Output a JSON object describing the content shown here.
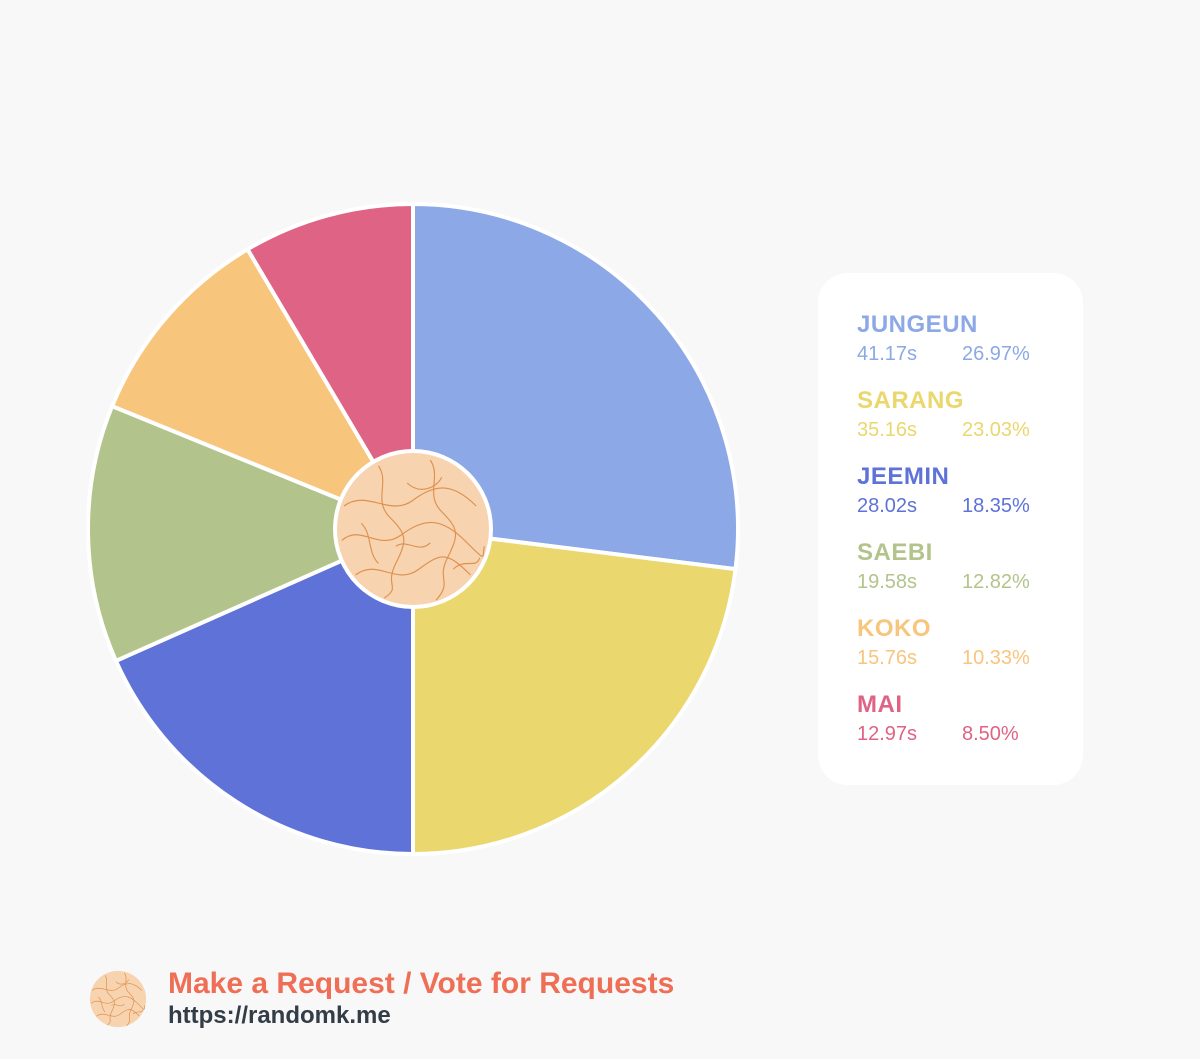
{
  "chart_data": {
    "type": "pie",
    "slices": [
      {
        "label": "JUNGEUN",
        "time": "41.17s",
        "percent": "26.97%",
        "value": 26.97,
        "color": "#8ca8e6"
      },
      {
        "label": "SARANG",
        "time": "35.16s",
        "percent": "23.03%",
        "value": 23.03,
        "color": "#ead76d"
      },
      {
        "label": "JEEMIN",
        "time": "28.02s",
        "percent": "18.35%",
        "value": 18.35,
        "color": "#5e72d8"
      },
      {
        "label": "SAEBI",
        "time": "19.58s",
        "percent": "12.82%",
        "value": 12.82,
        "color": "#b2c48b"
      },
      {
        "label": "KOKO",
        "time": "15.76s",
        "percent": "10.33%",
        "value": 10.33,
        "color": "#f8c57d"
      },
      {
        "label": "MAI",
        "time": "12.97s",
        "percent": "8.50%",
        "value": 8.5,
        "color": "#df6384"
      }
    ],
    "start_angle": "12 o'clock",
    "direction": "clockwise",
    "center_badge": "orange-circle-with-contour-lines"
  },
  "legend": {
    "placement": "right"
  },
  "footer": {
    "title": "Make a Request / Vote for Requests",
    "url": "https://randomk.me",
    "icon": "orange-circle-with-contour-lines",
    "title_color": "#ef6f56",
    "url_color": "#333d47"
  },
  "colors": {
    "background": "#f8f8f8",
    "legend_background": "#ffffff",
    "badge_fill": "#f8d3b0",
    "badge_lines": "#d9863c"
  }
}
